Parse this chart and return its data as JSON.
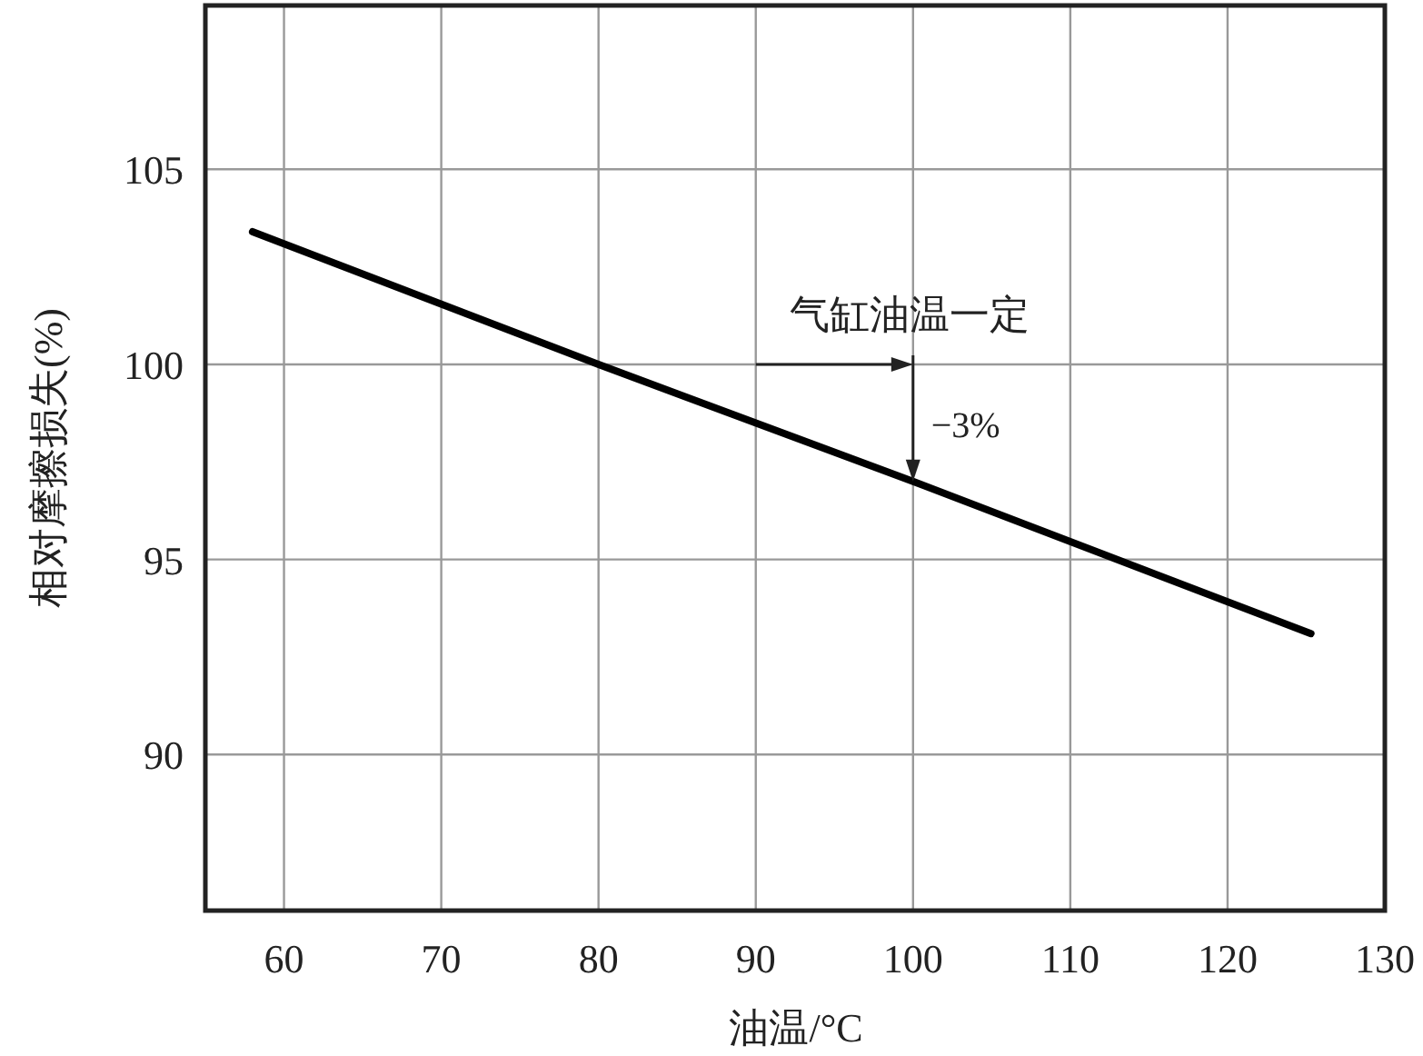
{
  "chart_data": {
    "type": "line",
    "xlabel": "油温/°C",
    "ylabel": "相对摩擦损失(%)",
    "x": [
      58,
      80,
      100,
      125.3
    ],
    "series": [
      {
        "color": "#000000",
        "values": [
          103.4,
          100,
          97,
          93.1
        ]
      }
    ],
    "xlim": [
      55,
      130
    ],
    "xticks": [
      60,
      70,
      80,
      90,
      100,
      110,
      120,
      130
    ],
    "ylim": [
      86,
      109.2
    ],
    "yticks": [
      90,
      95,
      100,
      105
    ],
    "grid": true,
    "annotations": [
      "气缸油温一定",
      {
        "text": "−3%",
        "x": 100,
        "y": 97
      }
    ]
  }
}
